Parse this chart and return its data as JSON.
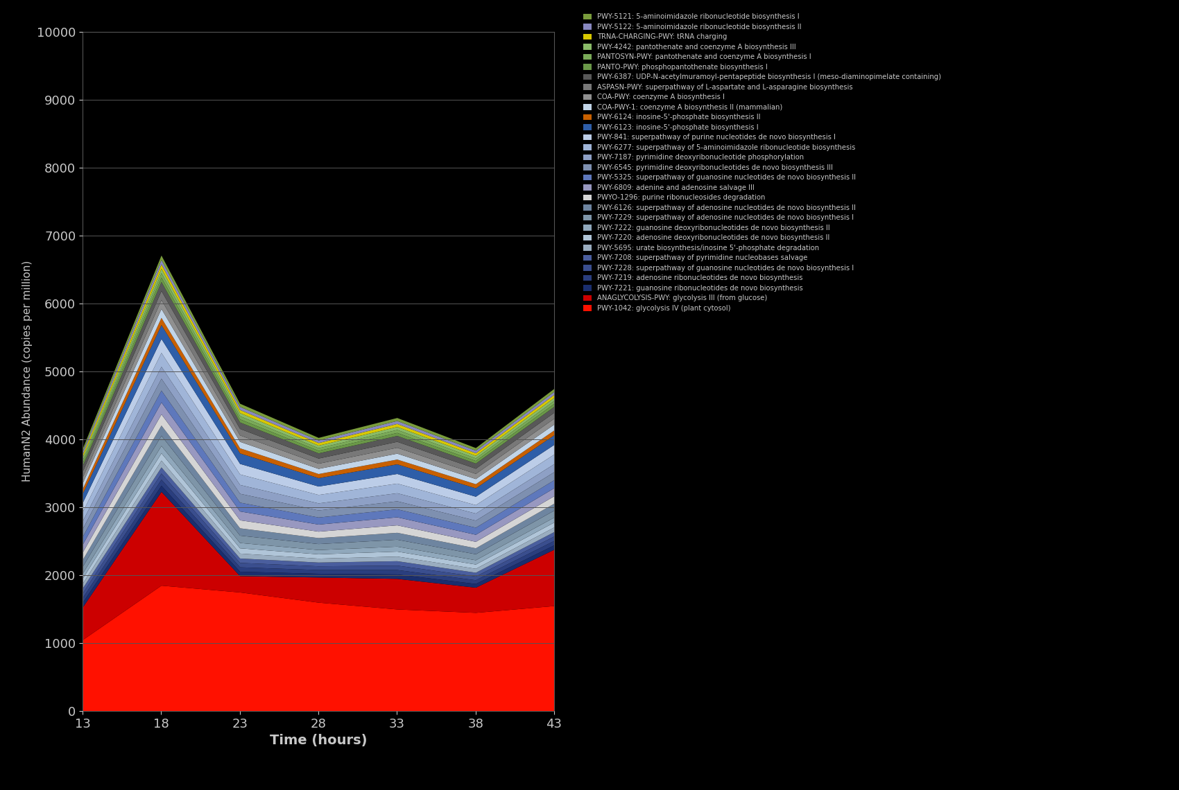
{
  "xlabel": "Time (hours)",
  "ylabel": "HumanN2 Abundance (copies per million)",
  "background_color": "#000000",
  "text_color": "#c8c8c8",
  "grid_color": "#555555",
  "x": [
    13,
    18,
    23,
    28,
    33,
    38,
    43
  ],
  "ylim": [
    0,
    10000
  ],
  "series": [
    {
      "label": "PWY-1042: glycolysis IV (plant cytosol)",
      "color": "#ff1100",
      "values": [
        1050,
        1850,
        1750,
        1600,
        1500,
        1450,
        1550
      ]
    },
    {
      "label": "ANAGLYCOLYSIS-PWY: glycolysis III (from glucose)",
      "color": "#cc0000",
      "values": [
        480,
        1380,
        240,
        370,
        450,
        370,
        830
      ]
    },
    {
      "label": "PWY-7221: guanosine ribonucleotides de novo biosynthesis",
      "color": "#1a2e6e",
      "values": [
        70,
        90,
        65,
        55,
        65,
        55,
        65
      ]
    },
    {
      "label": "PWY-7219: adenosine ribonucleotides de novo biosynthesis",
      "color": "#2a3e7e",
      "values": [
        70,
        90,
        65,
        55,
        65,
        55,
        65
      ]
    },
    {
      "label": "PWY-7228: superpathway of guanosine nucleotides de novo biosynthesis I",
      "color": "#3a4e8e",
      "values": [
        70,
        90,
        65,
        55,
        65,
        55,
        65
      ]
    },
    {
      "label": "PWY-7208: superpathway of pyrimidine nucleobases salvage",
      "color": "#4a5e9e",
      "values": [
        70,
        90,
        65,
        55,
        65,
        55,
        65
      ]
    },
    {
      "label": "PWY-5695: urate biosynthesis/inosine 5'-phosphate degradation",
      "color": "#9aadc0",
      "values": [
        70,
        100,
        72,
        58,
        68,
        58,
        68
      ]
    },
    {
      "label": "PWY-7220: adenosine deoxyribonucleotides de novo biosynthesis II",
      "color": "#b0c5d8",
      "values": [
        75,
        108,
        78,
        63,
        73,
        63,
        73
      ]
    },
    {
      "label": "PWY-7222: guanosine deoxyribonucleotides de novo biosynthesis II",
      "color": "#90a8bc",
      "values": [
        75,
        108,
        78,
        63,
        73,
        63,
        73
      ]
    },
    {
      "label": "PWY-7229: superpathway of adenosine nucleotides de novo biosynthesis I",
      "color": "#7e95a8",
      "values": [
        100,
        150,
        108,
        88,
        102,
        88,
        102
      ]
    },
    {
      "label": "PWY-6126: superpathway of adenosine nucleotides de novo biosynthesis II",
      "color": "#6e85a0",
      "values": [
        100,
        150,
        108,
        88,
        102,
        88,
        102
      ]
    },
    {
      "label": "PWYO-1296: purine ribonucleosides degradation",
      "color": "#d5d5d5",
      "values": [
        110,
        165,
        118,
        95,
        110,
        95,
        110
      ]
    },
    {
      "label": "PWY-6809: adenine and adenosine salvage III",
      "color": "#9898c0",
      "values": [
        115,
        175,
        130,
        104,
        118,
        104,
        118
      ]
    },
    {
      "label": "PWY-5325: superpathway of guanosine nucleotides de novo biosynthesis II",
      "color": "#5e78bc",
      "values": [
        115,
        175,
        130,
        104,
        118,
        104,
        118
      ]
    },
    {
      "label": "PWY-6545: pyrimidine deoxyribonucleotides de novo biosynthesis III",
      "color": "#7e90b0",
      "values": [
        115,
        175,
        130,
        104,
        118,
        104,
        118
      ]
    },
    {
      "label": "PWY-7187: pyrimidine deoxyribonucleotide phosphorylation",
      "color": "#8ea0c5",
      "values": [
        115,
        175,
        130,
        104,
        118,
        104,
        118
      ]
    },
    {
      "label": "PWY-6277: superpathway of 5-aminoimidazole ribonucleotide biosynthesis",
      "color": "#a0b5d8",
      "values": [
        135,
        205,
        155,
        124,
        142,
        124,
        142
      ]
    },
    {
      "label": "PWY-841: superpathway of purine nucleotides de novo biosynthesis I",
      "color": "#bccde8",
      "values": [
        135,
        205,
        155,
        124,
        142,
        124,
        142
      ]
    },
    {
      "label": "PWY-6123: inosine-5'-phosphate biosynthesis I",
      "color": "#2e5ea8",
      "values": [
        135,
        205,
        155,
        124,
        142,
        124,
        142
      ]
    },
    {
      "label": "PWY-6124: inosine-5'-phosphate biosynthesis II",
      "color": "#c86000",
      "values": [
        70,
        105,
        75,
        60,
        70,
        60,
        70
      ]
    },
    {
      "label": "COA-PWY-1: coenzyme A biosynthesis II (mammalian)",
      "color": "#c2d5e8",
      "values": [
        85,
        132,
        95,
        76,
        87,
        76,
        87
      ]
    },
    {
      "label": "COA-PWY: coenzyme A biosynthesis I",
      "color": "#909090",
      "values": [
        85,
        132,
        95,
        76,
        87,
        76,
        87
      ]
    },
    {
      "label": "ASPASN-PWY: superpathway of L-aspartate and L-asparagine biosynthesis",
      "color": "#787878",
      "values": [
        85,
        132,
        95,
        76,
        87,
        76,
        87
      ]
    },
    {
      "label": "PWY-6387: UDP-N-acetylmuramoyl-pentapeptide biosynthesis I (meso-diaminopimelate containing)",
      "color": "#585858",
      "values": [
        85,
        132,
        95,
        76,
        87,
        76,
        87
      ]
    },
    {
      "label": "PANTO-PWY: phosphopantothenate biosynthesis I",
      "color": "#6a9848",
      "values": [
        42,
        65,
        46,
        38,
        44,
        38,
        44
      ]
    },
    {
      "label": "PANTOSYN-PWY: pantothenate and coenzyme A biosynthesis I",
      "color": "#7aaa58",
      "values": [
        42,
        65,
        46,
        38,
        44,
        38,
        44
      ]
    },
    {
      "label": "PWY-4242: pantothenate and coenzyme A biosynthesis III",
      "color": "#8abb68",
      "values": [
        42,
        65,
        46,
        38,
        44,
        38,
        44
      ]
    },
    {
      "label": "TRNA-CHARGING-PWY: tRNA charging",
      "color": "#d8c800",
      "values": [
        42,
        65,
        46,
        38,
        44,
        38,
        44
      ]
    },
    {
      "label": "PWY-5122: 5-aminoimidazole ribonucleotide biosynthesis II",
      "color": "#8888c0",
      "values": [
        42,
        65,
        46,
        38,
        44,
        38,
        44
      ]
    },
    {
      "label": "PWY-5121: 5-aminoimidazole ribonucleotide biosynthesis I",
      "color": "#7a9c3c",
      "values": [
        42,
        65,
        46,
        38,
        44,
        38,
        44
      ]
    }
  ]
}
